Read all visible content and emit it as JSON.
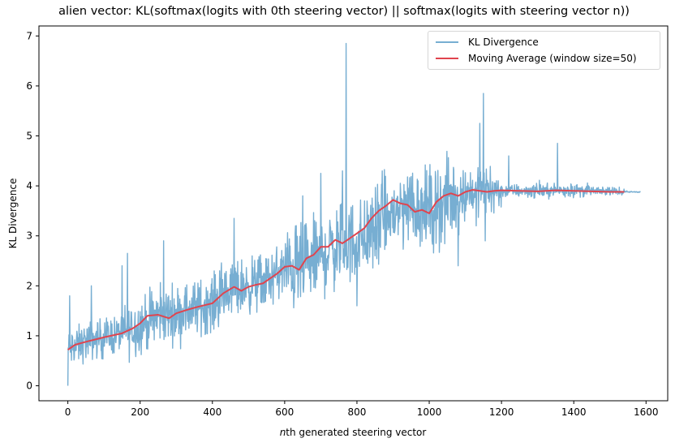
{
  "chart_data": {
    "type": "line",
    "title": "alien vector: KL(softmax(logits with 0th steering vector) || softmax(logits with steering vector n))",
    "xlabel_italic": "n",
    "xlabel_rest": "th generated steering vector",
    "ylabel": "KL Divergence",
    "xlim": [
      -80,
      1660
    ],
    "ylim": [
      -0.3,
      7.2
    ],
    "xticks": [
      0,
      200,
      400,
      600,
      800,
      1000,
      1200,
      1400,
      1600
    ],
    "yticks": [
      0,
      1,
      2,
      3,
      4,
      5,
      6,
      7
    ],
    "grid": false,
    "legend_placement": "top-right",
    "series": [
      {
        "name": "KL Divergence",
        "color": "#77aed2",
        "trend_x": [
          0,
          50,
          100,
          150,
          200,
          250,
          300,
          350,
          400,
          450,
          500,
          550,
          600,
          650,
          700,
          750,
          800,
          850,
          900,
          950,
          1000,
          1050,
          1100,
          1150,
          1200,
          1250,
          1300,
          1350,
          1400,
          1450,
          1500,
          1550,
          1585
        ],
        "trend_y": [
          0.72,
          0.88,
          0.97,
          1.05,
          1.2,
          1.4,
          1.45,
          1.55,
          1.65,
          1.92,
          2.0,
          2.1,
          2.32,
          2.35,
          2.6,
          2.8,
          2.9,
          3.1,
          3.45,
          3.65,
          3.5,
          3.7,
          3.88,
          3.92,
          3.9,
          3.9,
          3.9,
          3.91,
          3.91,
          3.9,
          3.89,
          3.88,
          3.88
        ],
        "spikes": [
          {
            "x": 0,
            "y": 0.0
          },
          {
            "x": 5,
            "y": 1.8
          },
          {
            "x": 65,
            "y": 2.0
          },
          {
            "x": 165,
            "y": 2.65
          },
          {
            "x": 265,
            "y": 2.9
          },
          {
            "x": 420,
            "y": 2.3
          },
          {
            "x": 460,
            "y": 3.35
          },
          {
            "x": 650,
            "y": 3.8
          },
          {
            "x": 700,
            "y": 4.25
          },
          {
            "x": 770,
            "y": 6.85
          },
          {
            "x": 760,
            "y": 4.3
          },
          {
            "x": 870,
            "y": 4.3
          },
          {
            "x": 1000,
            "y": 4.2
          },
          {
            "x": 1140,
            "y": 5.25
          },
          {
            "x": 1150,
            "y": 5.85
          },
          {
            "x": 1220,
            "y": 4.6
          },
          {
            "x": 1355,
            "y": 4.85
          },
          {
            "x": 800,
            "y": 1.6
          },
          {
            "x": 1080,
            "y": 2.4
          },
          {
            "x": 1155,
            "y": 2.9
          },
          {
            "x": 1130,
            "y": 3.2
          }
        ]
      },
      {
        "name": "Moving Average (window size=50)",
        "color": "#e0444e",
        "x": [
          0,
          20,
          50,
          100,
          150,
          180,
          200,
          220,
          250,
          280,
          300,
          330,
          360,
          400,
          430,
          460,
          480,
          500,
          520,
          540,
          560,
          580,
          600,
          620,
          640,
          660,
          680,
          700,
          720,
          740,
          760,
          780,
          800,
          820,
          840,
          860,
          880,
          900,
          920,
          940,
          960,
          980,
          1000,
          1020,
          1040,
          1060,
          1080,
          1100,
          1120,
          1140,
          1160,
          1180,
          1200,
          1250,
          1300,
          1350,
          1400,
          1450,
          1500,
          1540
        ],
        "y": [
          0.72,
          0.82,
          0.88,
          0.97,
          1.05,
          1.15,
          1.25,
          1.4,
          1.42,
          1.35,
          1.45,
          1.52,
          1.58,
          1.65,
          1.85,
          1.98,
          1.9,
          1.98,
          2.02,
          2.05,
          2.15,
          2.25,
          2.38,
          2.4,
          2.32,
          2.55,
          2.62,
          2.78,
          2.78,
          2.92,
          2.85,
          2.95,
          3.05,
          3.15,
          3.35,
          3.5,
          3.6,
          3.72,
          3.65,
          3.62,
          3.48,
          3.52,
          3.45,
          3.68,
          3.8,
          3.85,
          3.8,
          3.88,
          3.92,
          3.9,
          3.88,
          3.9,
          3.91,
          3.9,
          3.89,
          3.91,
          3.9,
          3.89,
          3.88,
          3.88
        ]
      }
    ]
  }
}
